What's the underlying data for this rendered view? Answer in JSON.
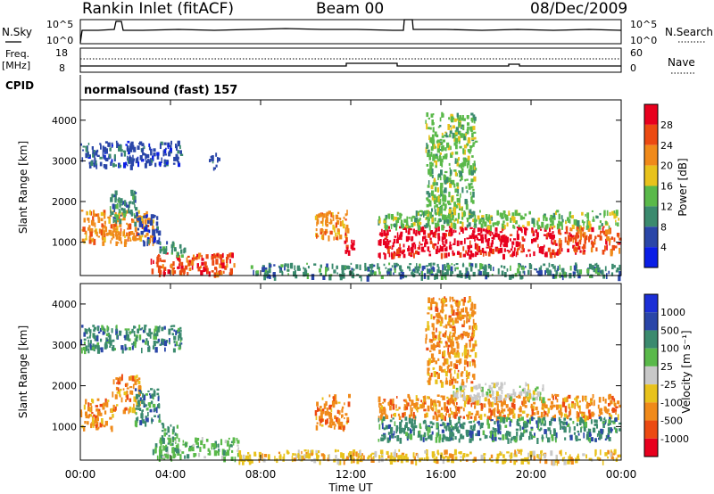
{
  "header": {
    "station": "Rankin Inlet (fitACF)",
    "beam": "Beam 00",
    "date": "08/Dec/2009"
  },
  "top_panels": {
    "nsky_label": "N.Sky",
    "nsky_ticks": [
      "10^5",
      "10^0"
    ],
    "nsearch_label": "N.Search",
    "nsearch_ticks": [
      "10^5",
      "10^0"
    ],
    "freq_label": "Freq.",
    "freq_unit": "[MHz]",
    "freq_ticks": [
      "18",
      "8"
    ],
    "nave_label": "Nave",
    "nave_ticks": [
      "60",
      "0"
    ],
    "cpid_label": "CPID",
    "cpid_text": "normalsound (fast) 157"
  },
  "chart_data": [
    {
      "type": "heatmap",
      "name": "power",
      "ylabel": "Slant Range [km]",
      "yticks": [
        "1000",
        "2000",
        "3000",
        "4000"
      ],
      "ylim": [
        180,
        4500
      ],
      "xlim": [
        0,
        24
      ],
      "colorbar_label": "Power [dB]",
      "colorbar_ticks": [
        "4",
        "8",
        "12",
        "16",
        "20",
        "24",
        "28"
      ],
      "colors": [
        "#0a1ee6",
        "#2a46a8",
        "#3b8a6e",
        "#5ab94a",
        "#e8c21c",
        "#f08a1a",
        "#ec4a12",
        "#e8001e"
      ],
      "regions": [
        {
          "t0": 0.0,
          "t1": 3.3,
          "r0": 1000,
          "r1": 1800,
          "c": 5
        },
        {
          "t0": 1.3,
          "t1": 2.5,
          "r0": 1500,
          "r1": 2300,
          "c": 2
        },
        {
          "t0": 2.5,
          "t1": 3.5,
          "r0": 1000,
          "r1": 1700,
          "c": 1
        },
        {
          "t0": 3.1,
          "t1": 6.8,
          "r0": 250,
          "r1": 750,
          "c": 6
        },
        {
          "t0": 3.5,
          "t1": 4.6,
          "r0": 700,
          "r1": 1050,
          "c": 2
        },
        {
          "t0": 10.4,
          "t1": 11.9,
          "r0": 1100,
          "r1": 1800,
          "c": 5
        },
        {
          "t0": 11.7,
          "t1": 12.1,
          "r0": 800,
          "r1": 1300,
          "c": 7
        },
        {
          "t0": 13.2,
          "t1": 21.2,
          "r0": 700,
          "r1": 1400,
          "c": 7
        },
        {
          "t0": 13.2,
          "t1": 23.9,
          "r0": 1400,
          "r1": 1800,
          "c": 3
        },
        {
          "t0": 21.2,
          "t1": 23.9,
          "r0": 800,
          "r1": 1400,
          "c": 6
        },
        {
          "t0": 0.0,
          "t1": 4.5,
          "r0": 2900,
          "r1": 3500,
          "c": 1
        },
        {
          "t0": 5.7,
          "t1": 6.1,
          "r0": 2800,
          "r1": 3200,
          "c": 1
        },
        {
          "t0": 15.3,
          "t1": 17.5,
          "r0": 1600,
          "r1": 4200,
          "c": 3
        },
        {
          "t0": 7.5,
          "t1": 23.9,
          "r0": 180,
          "r1": 500,
          "c": 2
        }
      ]
    },
    {
      "type": "heatmap",
      "name": "velocity",
      "ylabel": "Slant Range [km]",
      "yticks": [
        "1000",
        "2000",
        "3000",
        "4000"
      ],
      "ylim": [
        180,
        4500
      ],
      "xlim": [
        0,
        24
      ],
      "xlabel": "Time UT",
      "xticks": [
        "00:00",
        "04:00",
        "08:00",
        "12:00",
        "16:00",
        "20:00",
        "00:00"
      ],
      "colorbar_label": "Velocity [m s⁻¹]",
      "colorbar_ticks": [
        "1000",
        "500",
        "100",
        "25",
        "-25",
        "-100",
        "-500",
        "-1000"
      ],
      "colors": [
        "#1c2fd6",
        "#2a46a8",
        "#3b8a6e",
        "#5ab94a",
        "#c8c8c8",
        "#e8c21c",
        "#f08a1a",
        "#ec4a12",
        "#e8001e"
      ],
      "regions": [
        {
          "t0": 0.0,
          "t1": 1.4,
          "r0": 950,
          "r1": 1700,
          "c": 6
        },
        {
          "t0": 1.4,
          "t1": 2.6,
          "r0": 1400,
          "r1": 2300,
          "c": 6
        },
        {
          "t0": 2.4,
          "t1": 3.5,
          "r0": 1100,
          "r1": 1950,
          "c": 2
        },
        {
          "t0": 3.5,
          "t1": 4.3,
          "r0": 700,
          "r1": 1100,
          "c": 2
        },
        {
          "t0": 3.2,
          "t1": 7.0,
          "r0": 250,
          "r1": 750,
          "c": 3
        },
        {
          "t0": 10.4,
          "t1": 11.9,
          "r0": 1000,
          "r1": 1800,
          "c": 6
        },
        {
          "t0": 13.2,
          "t1": 23.9,
          "r0": 1250,
          "r1": 1800,
          "c": 6
        },
        {
          "t0": 13.2,
          "t1": 23.9,
          "r0": 700,
          "r1": 1250,
          "c": 2
        },
        {
          "t0": 16.5,
          "t1": 20.5,
          "r0": 1700,
          "r1": 2100,
          "c": 4
        },
        {
          "t0": 15.3,
          "t1": 17.5,
          "r0": 2100,
          "r1": 4200,
          "c": 6
        },
        {
          "t0": 0.0,
          "t1": 4.5,
          "r0": 2900,
          "r1": 3500,
          "c": 2
        },
        {
          "t0": 7.0,
          "t1": 23.9,
          "r0": 180,
          "r1": 450,
          "c": 5
        }
      ]
    }
  ]
}
